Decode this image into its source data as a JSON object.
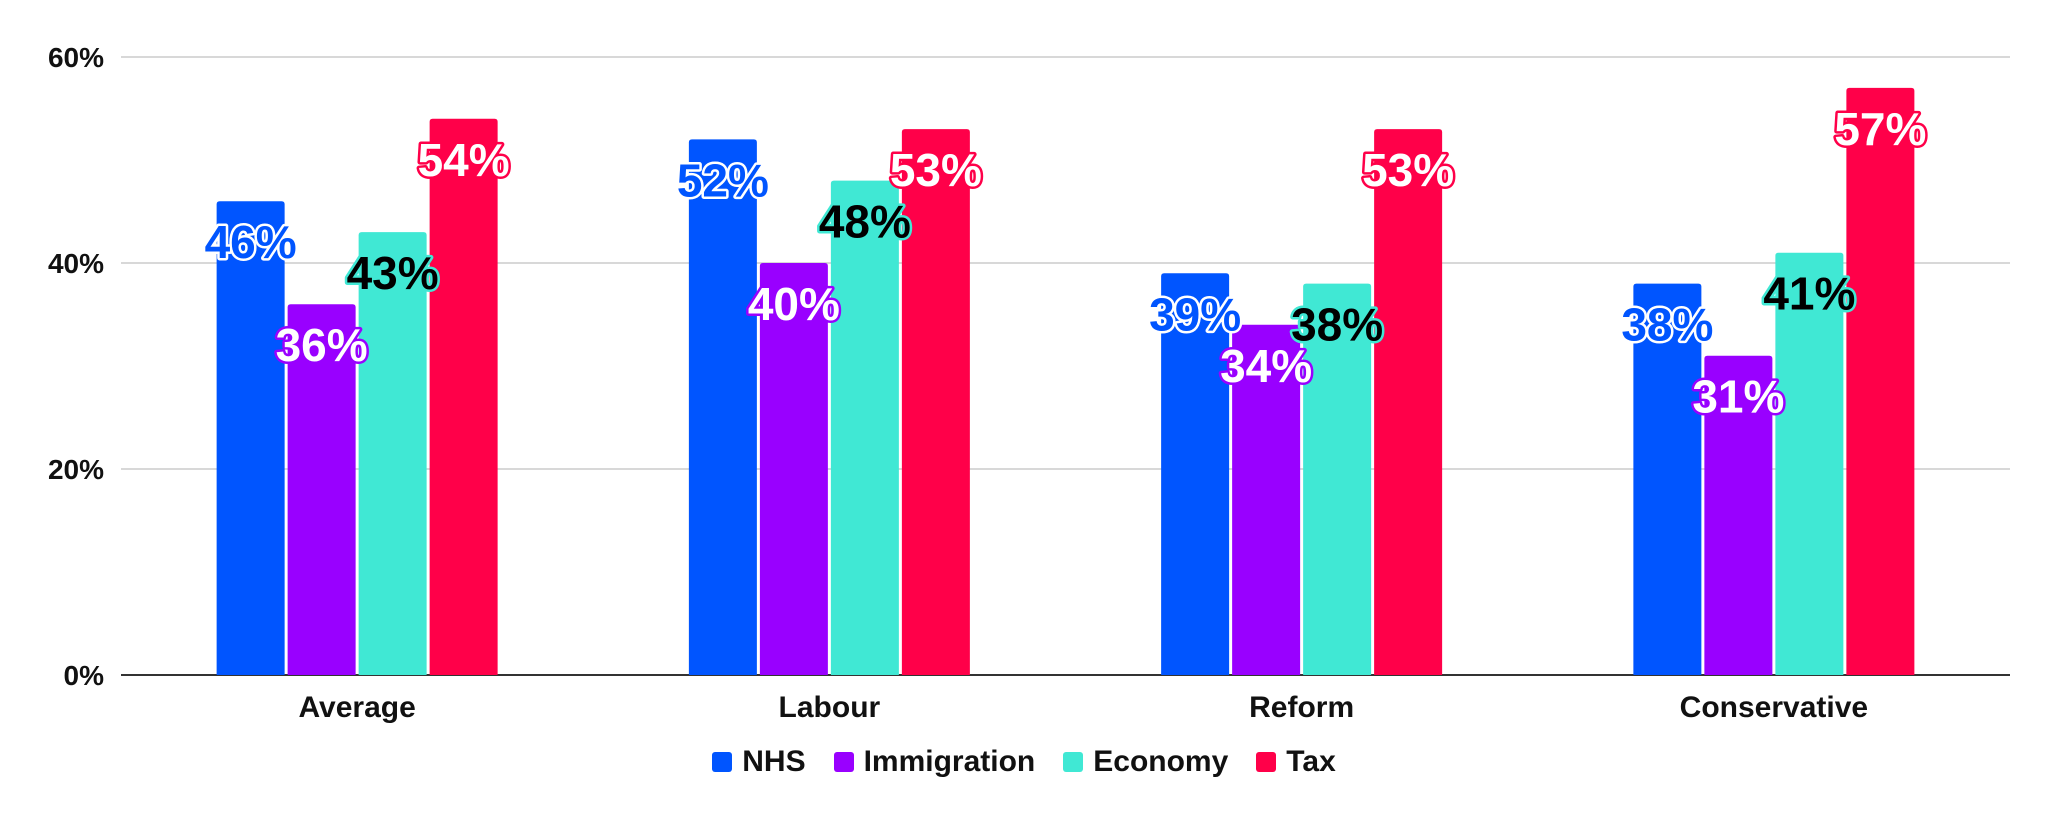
{
  "chart_data": {
    "type": "bar",
    "categories": [
      "Average",
      "Labour",
      "Reform",
      "Conservative"
    ],
    "series": [
      {
        "name": "NHS",
        "color": "#0055ff",
        "values": [
          46,
          52,
          39,
          38
        ],
        "labels": [
          "46%",
          "52%",
          "39%",
          "38%"
        ],
        "label_fill": "#0055ff",
        "label_stroke": "#ffffff"
      },
      {
        "name": "Immigration",
        "color": "#9900ff",
        "values": [
          36,
          40,
          34,
          31
        ],
        "labels": [
          "36%",
          "40%",
          "34%",
          "31%"
        ],
        "label_fill": "#ffffff",
        "label_stroke": "#9900ff"
      },
      {
        "name": "Economy",
        "color": "#40e8d4",
        "values": [
          43,
          48,
          38,
          41
        ],
        "labels": [
          "43%",
          "48%",
          "38%",
          "41%"
        ],
        "label_fill": "#000000",
        "label_stroke": "#40e8d4"
      },
      {
        "name": "Tax",
        "color": "#ff0049",
        "values": [
          54,
          53,
          53,
          57
        ],
        "labels": [
          "54%",
          "53%",
          "53%",
          "57%"
        ],
        "label_fill": "#ffffff",
        "label_stroke": "#ff0049"
      }
    ],
    "ylim": [
      0,
      60
    ],
    "yticks": [
      0,
      20,
      40,
      60
    ],
    "ytick_labels": [
      "0%",
      "20%",
      "40%",
      "60%"
    ],
    "grid": true,
    "legend_position": "bottom",
    "title": "",
    "xlabel": "",
    "ylabel": ""
  }
}
